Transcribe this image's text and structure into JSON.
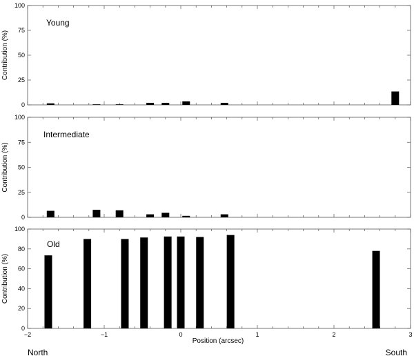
{
  "chart_data": {
    "type": "bar",
    "xlabel": "Position (arcsec)",
    "ylabel": "Contribution (%)",
    "xlim": [
      -2,
      3
    ],
    "x_ticks": [
      -2,
      -1,
      0,
      1,
      2,
      3
    ],
    "x_tick_labels": [
      "−2",
      "−1",
      "0",
      "1",
      "2",
      "3"
    ],
    "direction_labels": {
      "left": "North",
      "right": "South"
    },
    "grid": false,
    "bar_color": "#000000",
    "panels": [
      {
        "label": "Young",
        "ylim": [
          0,
          100
        ],
        "y_ticks": [
          0,
          25,
          50,
          75,
          100
        ],
        "x": [
          -1.7,
          -1.1,
          -0.8,
          -0.4,
          -0.2,
          0.07,
          0.57,
          2.8
        ],
        "values": [
          1.5,
          0.3,
          0.3,
          2,
          2,
          3.5,
          2,
          13.5
        ]
      },
      {
        "label": "Intermediate",
        "ylim": [
          0,
          100
        ],
        "y_ticks": [
          0,
          25,
          50,
          75,
          100
        ],
        "x": [
          -1.7,
          -1.1,
          -0.8,
          -0.4,
          -0.2,
          0.07,
          0.57
        ],
        "values": [
          6.5,
          7.5,
          7,
          3,
          4.5,
          1.5,
          3
        ]
      },
      {
        "label": "Old",
        "ylim": [
          0,
          100
        ],
        "y_ticks": [
          0,
          20,
          40,
          60,
          80,
          100
        ],
        "x": [
          -1.73,
          -1.22,
          -0.73,
          -0.48,
          -0.17,
          0.0,
          0.25,
          0.65,
          2.55
        ],
        "values": [
          73.5,
          90,
          90,
          91.5,
          92.5,
          92.5,
          92,
          94,
          78
        ]
      }
    ]
  }
}
